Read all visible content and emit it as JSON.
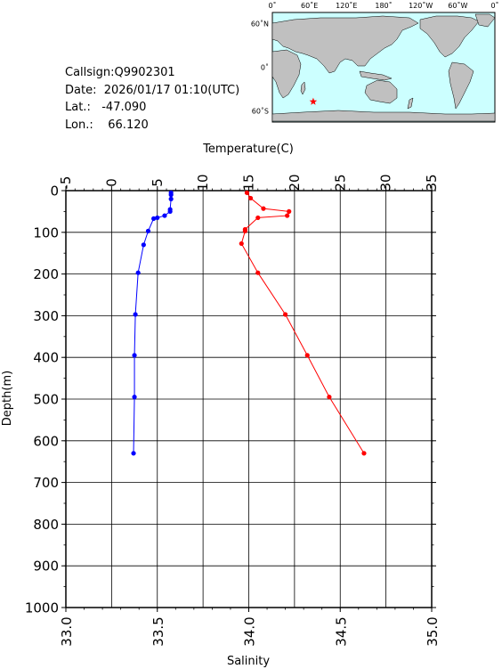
{
  "info": {
    "callsign_label": "Callsign:",
    "callsign": "Q9902301",
    "date_label": "Date:",
    "date": "2026/01/17 01:10(UTC)",
    "lat_label": "Lat.:",
    "lat": "-47.090",
    "lon_label": "Lon.:",
    "lon": "66.120"
  },
  "map": {
    "lon_ticks": [
      "0˚",
      "60˚E",
      "120˚E",
      "180˚",
      "120˚W",
      "60˚W",
      "0˚"
    ],
    "lat_ticks": [
      "60˚N",
      "0˚",
      "60˚S"
    ],
    "marker": {
      "lon": 66.12,
      "lat": -47.09
    },
    "ocean_color": "#ccffff",
    "land_color": "#c0c0c0",
    "marker_color": "#ff0000"
  },
  "chart_data": {
    "type": "line",
    "x_top": {
      "label": "Temperature(C)",
      "range": [
        -5,
        35
      ],
      "ticks": [
        "-5",
        "0",
        "5",
        "10",
        "15",
        "20",
        "25",
        "30",
        "35"
      ]
    },
    "x_bottom": {
      "label": "Salinity",
      "range": [
        33.0,
        35.0
      ],
      "ticks": [
        "33.0",
        "33.5",
        "34.0",
        "34.5",
        "35.0"
      ]
    },
    "y": {
      "label": "Depth(m)",
      "range": [
        0,
        1000
      ],
      "inverted": true,
      "ticks": [
        "0",
        "100",
        "200",
        "300",
        "400",
        "500",
        "600",
        "700",
        "800",
        "900",
        "1000"
      ]
    },
    "grid": true,
    "series": [
      {
        "axis": "temperature",
        "color": "#0000ff",
        "points": [
          {
            "x": 6.5,
            "y": 5
          },
          {
            "x": 6.5,
            "y": 10
          },
          {
            "x": 6.5,
            "y": 20
          },
          {
            "x": 6.4,
            "y": 45
          },
          {
            "x": 6.4,
            "y": 50
          },
          {
            "x": 5.8,
            "y": 60
          },
          {
            "x": 5.0,
            "y": 65
          },
          {
            "x": 4.6,
            "y": 67
          },
          {
            "x": 4.0,
            "y": 97
          },
          {
            "x": 3.5,
            "y": 130
          },
          {
            "x": 2.9,
            "y": 197
          },
          {
            "x": 2.6,
            "y": 297
          },
          {
            "x": 2.5,
            "y": 395
          },
          {
            "x": 2.5,
            "y": 495
          },
          {
            "x": 2.4,
            "y": 630
          }
        ]
      },
      {
        "axis": "salinity",
        "color": "#ff0000",
        "points": [
          {
            "x": 33.99,
            "y": 5
          },
          {
            "x": 34.01,
            "y": 18
          },
          {
            "x": 34.08,
            "y": 43
          },
          {
            "x": 34.22,
            "y": 50
          },
          {
            "x": 34.21,
            "y": 60
          },
          {
            "x": 34.05,
            "y": 65
          },
          {
            "x": 33.98,
            "y": 93
          },
          {
            "x": 33.98,
            "y": 97
          },
          {
            "x": 33.96,
            "y": 127
          },
          {
            "x": 34.05,
            "y": 197
          },
          {
            "x": 34.2,
            "y": 297
          },
          {
            "x": 34.32,
            "y": 395
          },
          {
            "x": 34.44,
            "y": 495
          },
          {
            "x": 34.63,
            "y": 630
          }
        ]
      }
    ]
  }
}
